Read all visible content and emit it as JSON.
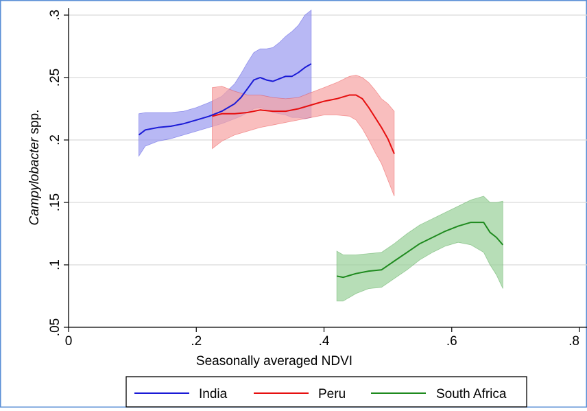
{
  "colors": {
    "india": "#1a1ad6",
    "india_band": "#9a9af0",
    "peru": "#e60f0f",
    "peru_band": "#f6a3a3",
    "south_africa": "#1e8a1e",
    "south_africa_band": "#98d098",
    "gridline": "#d9d9d9",
    "frame_border": "#5a8fd6"
  },
  "chart_data": {
    "type": "line",
    "xlabel": "Seasonally averaged NDVI",
    "ylabel_italic": "Campylobacter",
    "ylabel_rest": " spp.",
    "xlim": [
      0,
      0.8
    ],
    "ylim": [
      0.05,
      0.3
    ],
    "x_ticks": [
      0,
      0.2,
      0.4,
      0.6,
      0.8
    ],
    "x_tick_labels": [
      "0",
      ".2",
      ".4",
      ".6",
      ".8"
    ],
    "y_ticks": [
      0.05,
      0.1,
      0.15,
      0.2,
      0.25,
      0.3
    ],
    "y_tick_labels": [
      ".05",
      ".1",
      ".15",
      ".2",
      ".25",
      ".3"
    ],
    "grid": "horizontal",
    "legend_position": "bottom",
    "series": [
      {
        "name": "India",
        "x": [
          0.11,
          0.12,
          0.14,
          0.16,
          0.18,
          0.2,
          0.22,
          0.24,
          0.26,
          0.27,
          0.28,
          0.29,
          0.3,
          0.31,
          0.32,
          0.33,
          0.34,
          0.35,
          0.36,
          0.37,
          0.38
        ],
        "y": [
          0.204,
          0.208,
          0.21,
          0.211,
          0.213,
          0.216,
          0.219,
          0.223,
          0.229,
          0.234,
          0.241,
          0.248,
          0.25,
          0.248,
          0.247,
          0.249,
          0.251,
          0.251,
          0.254,
          0.258,
          0.261
        ],
        "lower": [
          0.187,
          0.195,
          0.199,
          0.201,
          0.204,
          0.207,
          0.21,
          0.213,
          0.217,
          0.219,
          0.222,
          0.225,
          0.226,
          0.224,
          0.222,
          0.221,
          0.22,
          0.218,
          0.218,
          0.217,
          0.218
        ],
        "upper": [
          0.221,
          0.222,
          0.222,
          0.222,
          0.223,
          0.226,
          0.23,
          0.235,
          0.245,
          0.253,
          0.262,
          0.27,
          0.273,
          0.273,
          0.274,
          0.278,
          0.283,
          0.287,
          0.292,
          0.3,
          0.304
        ]
      },
      {
        "name": "Peru",
        "x": [
          0.225,
          0.24,
          0.26,
          0.28,
          0.3,
          0.32,
          0.34,
          0.36,
          0.38,
          0.4,
          0.42,
          0.44,
          0.45,
          0.46,
          0.47,
          0.48,
          0.49,
          0.5,
          0.51
        ],
        "y": [
          0.219,
          0.221,
          0.221,
          0.222,
          0.224,
          0.223,
          0.223,
          0.225,
          0.228,
          0.231,
          0.233,
          0.236,
          0.236,
          0.233,
          0.226,
          0.218,
          0.21,
          0.201,
          0.189
        ],
        "lower": [
          0.193,
          0.199,
          0.204,
          0.207,
          0.21,
          0.212,
          0.214,
          0.216,
          0.218,
          0.22,
          0.22,
          0.219,
          0.216,
          0.209,
          0.2,
          0.19,
          0.181,
          0.168,
          0.155
        ],
        "upper": [
          0.242,
          0.243,
          0.239,
          0.236,
          0.236,
          0.234,
          0.233,
          0.234,
          0.238,
          0.242,
          0.246,
          0.251,
          0.252,
          0.25,
          0.246,
          0.24,
          0.233,
          0.229,
          0.223
        ]
      },
      {
        "name": "South Africa",
        "x": [
          0.42,
          0.43,
          0.45,
          0.47,
          0.49,
          0.51,
          0.53,
          0.55,
          0.57,
          0.59,
          0.61,
          0.63,
          0.65,
          0.66,
          0.67,
          0.68
        ],
        "y": [
          0.091,
          0.09,
          0.093,
          0.095,
          0.096,
          0.103,
          0.11,
          0.117,
          0.122,
          0.127,
          0.131,
          0.134,
          0.134,
          0.126,
          0.122,
          0.116
        ],
        "lower": [
          0.071,
          0.071,
          0.077,
          0.081,
          0.082,
          0.089,
          0.096,
          0.104,
          0.11,
          0.115,
          0.118,
          0.116,
          0.11,
          0.1,
          0.092,
          0.081
        ],
        "upper": [
          0.111,
          0.108,
          0.108,
          0.109,
          0.11,
          0.117,
          0.125,
          0.132,
          0.137,
          0.142,
          0.147,
          0.152,
          0.155,
          0.15,
          0.15,
          0.151
        ]
      }
    ]
  }
}
